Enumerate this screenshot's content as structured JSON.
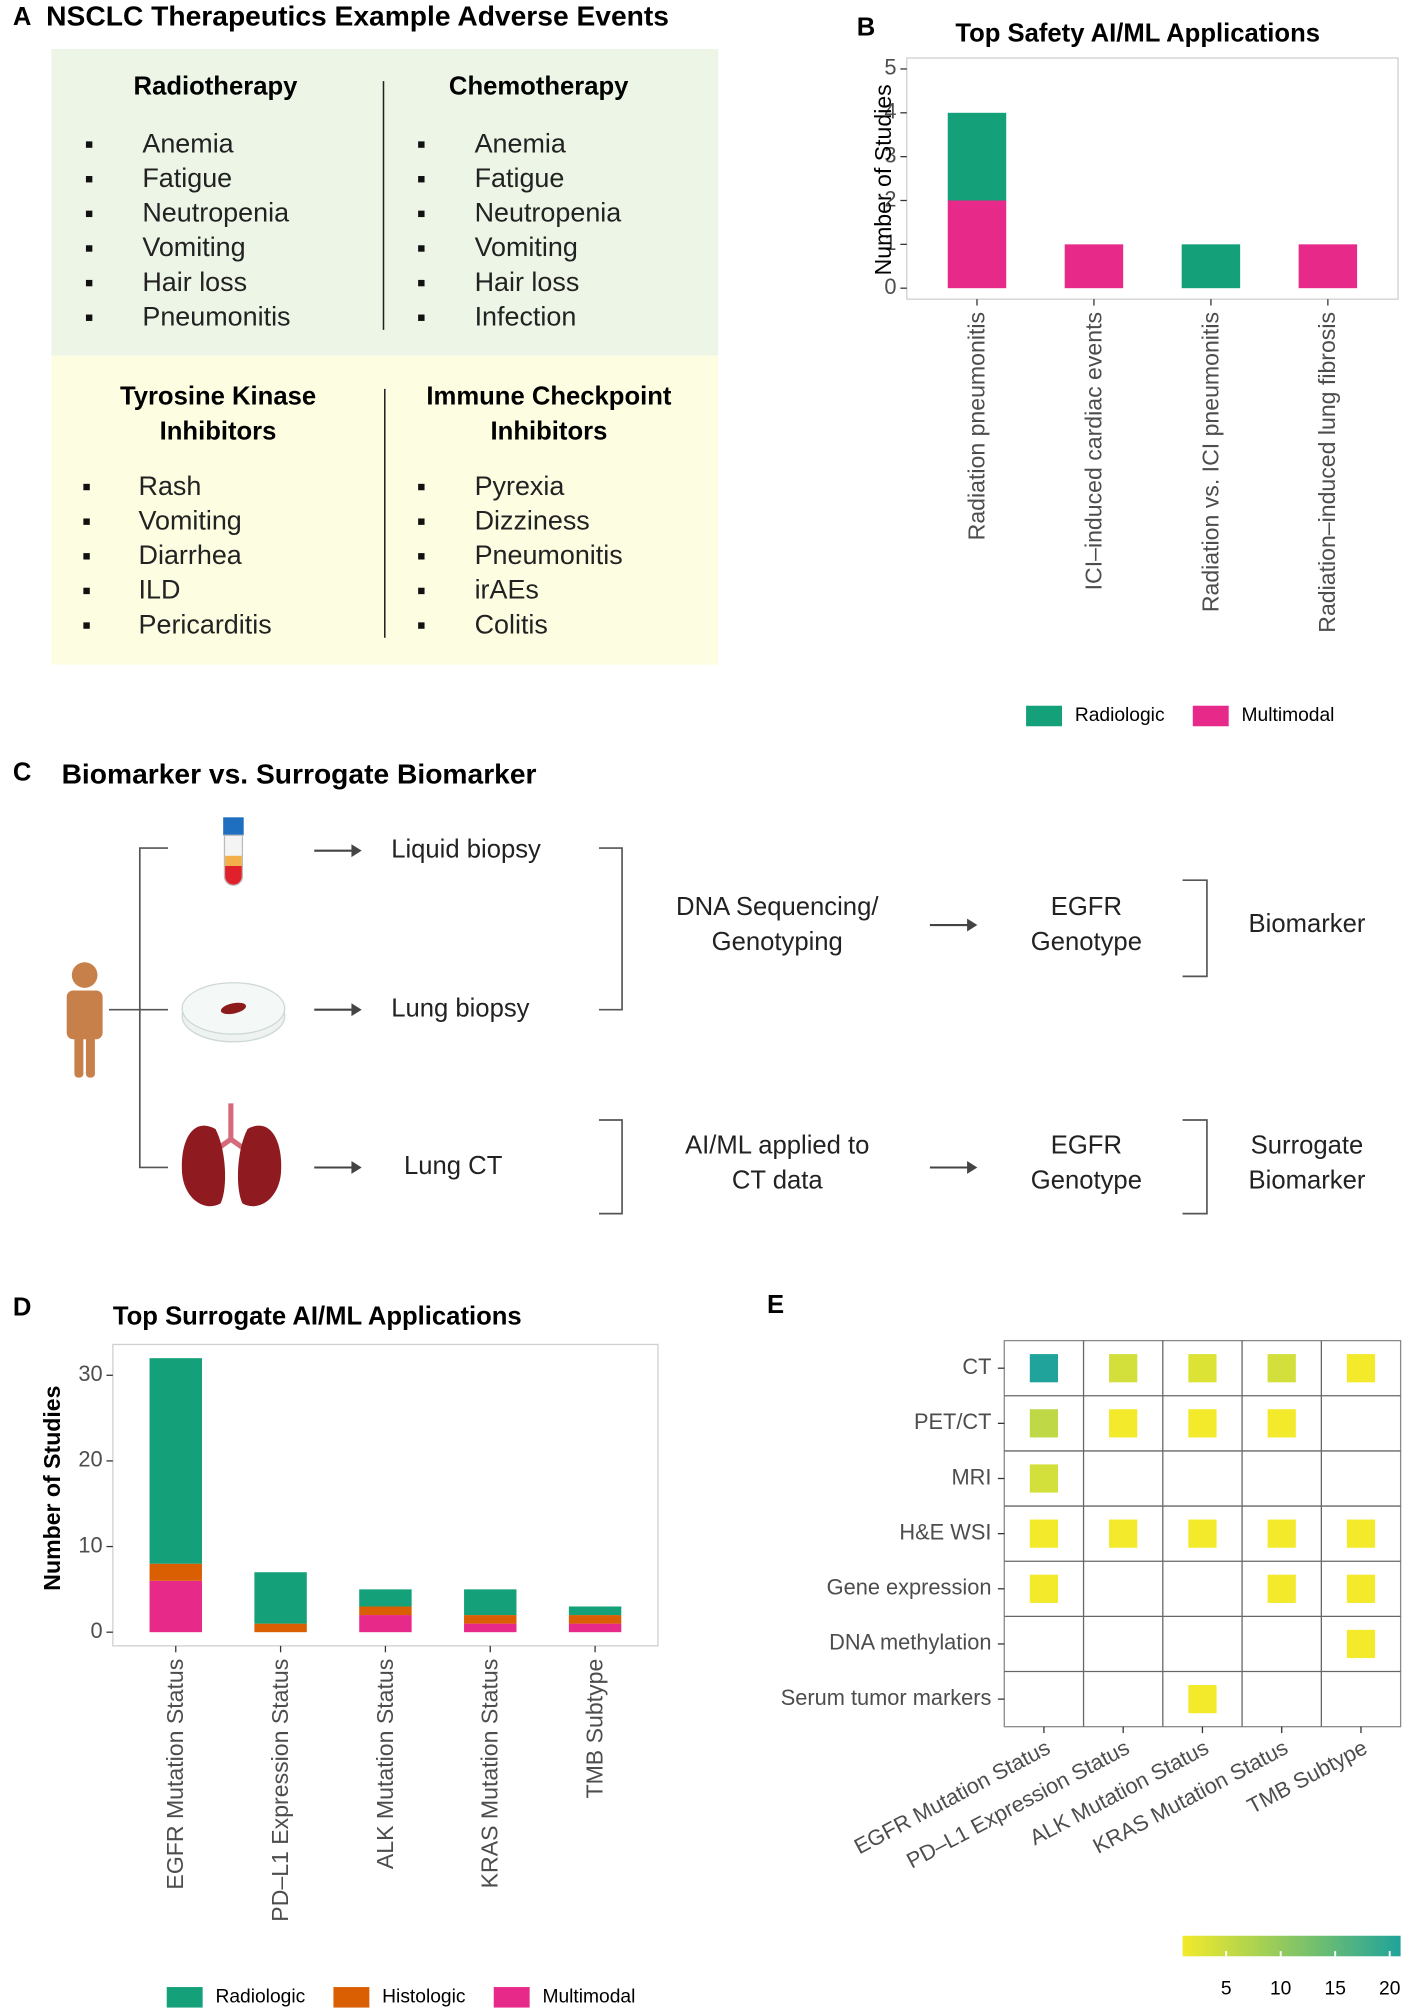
{
  "panel_a": {
    "label": "A",
    "title": "NSCLC Therapeutics Example Adverse Events",
    "groups": [
      {
        "name_lines": [
          "Radiotherapy"
        ],
        "items": [
          "Anemia",
          "Fatigue",
          "Neutropenia",
          "Vomiting",
          "Hair loss",
          "Pneumonitis"
        ]
      },
      {
        "name_lines": [
          "Chemotherapy"
        ],
        "items": [
          "Anemia",
          "Fatigue",
          "Neutropenia",
          "Vomiting",
          "Hair loss",
          "Infection"
        ]
      },
      {
        "name_lines": [
          "Tyrosine Kinase",
          "Inhibitors"
        ],
        "items": [
          "Rash",
          "Vomiting",
          "Diarrhea",
          "ILD",
          "Pericarditis"
        ]
      },
      {
        "name_lines": [
          "Immune Checkpoint",
          "Inhibitors"
        ],
        "items": [
          "Pyrexia",
          "Dizziness",
          "Pneumonitis",
          "irAEs",
          "Colitis"
        ]
      }
    ]
  },
  "panel_c": {
    "label": "C",
    "title": "Biomarker vs. Surrogate Biomarker",
    "sources": [
      "Liquid biopsy",
      "Lung biopsy",
      "Lung CT"
    ],
    "methods": [
      [
        "DNA Sequencing/",
        "Genotyping"
      ],
      [
        "AI/ML applied to",
        "CT data"
      ]
    ],
    "results": [
      [
        "EGFR",
        "Genotype"
      ],
      [
        "EGFR",
        "Genotype"
      ]
    ],
    "outcomes": [
      [
        "Biomarker"
      ],
      [
        "Surrogate",
        "Biomarker"
      ]
    ]
  },
  "chart_data": [
    {
      "panel_label": "B",
      "type": "bar",
      "stacked": true,
      "title": "Top Safety AI/ML Applications",
      "y_label": "Number of Studies",
      "categories": [
        "Radiation pneumonitis",
        "ICI–induced cardiac events",
        "Radiation vs. ICI pneumonitis",
        "Radiation–induced lung fibrosis"
      ],
      "series": [
        {
          "name": "Radiologic",
          "color": "#14a079",
          "values": [
            2,
            0,
            1,
            0
          ]
        },
        {
          "name": "Multimodal",
          "color": "#e7298a",
          "values": [
            2,
            1,
            0,
            1
          ]
        }
      ],
      "ylim": [
        -0.25,
        5.25
      ],
      "yticks": [
        0,
        1,
        2,
        3,
        4,
        5
      ],
      "legend": "bottom"
    },
    {
      "panel_label": "D",
      "type": "bar",
      "stacked": true,
      "title": "Top Surrogate AI/ML Applications",
      "y_label": "Number of Studies",
      "categories": [
        "EGFR Mutation Status",
        "PD–L1 Expression Status",
        "ALK Mutation Status",
        "KRAS Mutation Status",
        "TMB Subtype"
      ],
      "series": [
        {
          "name": "Radiologic",
          "color": "#14a079",
          "values": [
            24,
            6,
            2,
            3,
            1
          ]
        },
        {
          "name": "Histologic",
          "color": "#d95f02",
          "values": [
            2,
            1,
            1,
            1,
            1
          ]
        },
        {
          "name": "Multimodal",
          "color": "#e7298a",
          "values": [
            6,
            0,
            2,
            1,
            1
          ]
        }
      ],
      "ylim": [
        -1.6,
        33.6
      ],
      "yticks": [
        0,
        10,
        20,
        30
      ],
      "legend": "bottom"
    },
    {
      "panel_label": "E",
      "type": "heatmap",
      "rows": [
        "CT",
        "PET/CT",
        "MRI",
        "H&E WSI",
        "Gene expression",
        "DNA methylation",
        "Serum tumor markers"
      ],
      "columns": [
        "EGFR Mutation Status",
        "PD–L1 Expression Status",
        "ALK Mutation Status",
        "KRAS Mutation Status",
        "TMB Subtype"
      ],
      "values": [
        [
          21,
          4,
          3,
          4,
          1
        ],
        [
          6,
          1,
          1,
          1,
          null
        ],
        [
          4,
          null,
          null,
          null,
          null
        ],
        [
          1,
          1,
          1,
          1,
          1
        ],
        [
          1,
          null,
          null,
          1,
          1
        ],
        [
          null,
          null,
          null,
          null,
          1
        ],
        [
          null,
          null,
          1,
          null,
          null
        ]
      ],
      "colorbar": {
        "clim": [
          1,
          21
        ],
        "ticks": [
          5,
          10,
          15,
          20
        ],
        "colors": [
          "#f2ea2a",
          "#20a39b"
        ]
      }
    }
  ]
}
